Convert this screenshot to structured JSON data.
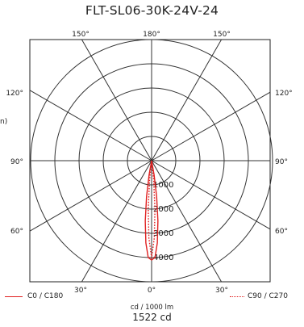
{
  "chart_data": {
    "type": "polar",
    "title": "FLT-SL06-30K-24V-24",
    "unit_label": "cd / 1000 lm",
    "peak_label": "1522 cd",
    "axis_fragment": "n)",
    "angle_labels": [
      {
        "label": "180°",
        "deg": 180
      },
      {
        "label": "150°",
        "deg": 150
      },
      {
        "label": "150°",
        "deg": -150
      },
      {
        "label": "120°",
        "deg": 120
      },
      {
        "label": "120°",
        "deg": -120
      },
      {
        "label": "90°",
        "deg": 90
      },
      {
        "label": "90°",
        "deg": -90
      },
      {
        "label": "60°",
        "deg": 60
      },
      {
        "label": "60°",
        "deg": -60
      },
      {
        "label": "30°",
        "deg": 30
      },
      {
        "label": "30°",
        "deg": -30
      },
      {
        "label": "0°",
        "deg": 0
      }
    ],
    "radial_ticks": [
      1000,
      2000,
      3000,
      4000
    ],
    "r_max": 5000,
    "series": [
      {
        "name": "C0 / C180",
        "style": "solid",
        "color": "#e02020",
        "angles": [
          -12,
          -10,
          -8,
          -6,
          -4,
          -2,
          0,
          2,
          4,
          6,
          8,
          10,
          12
        ],
        "values": [
          0,
          600,
          1500,
          2500,
          3400,
          4000,
          4100,
          4000,
          3400,
          2500,
          1500,
          600,
          0
        ]
      },
      {
        "name": "C90 / C270",
        "style": "dotted",
        "color": "#e02020",
        "angles": [
          -8,
          -6,
          -4,
          -2,
          0,
          2,
          4,
          6,
          8
        ],
        "values": [
          0,
          800,
          2000,
          3200,
          4000,
          3200,
          2000,
          800,
          0
        ]
      }
    ]
  }
}
